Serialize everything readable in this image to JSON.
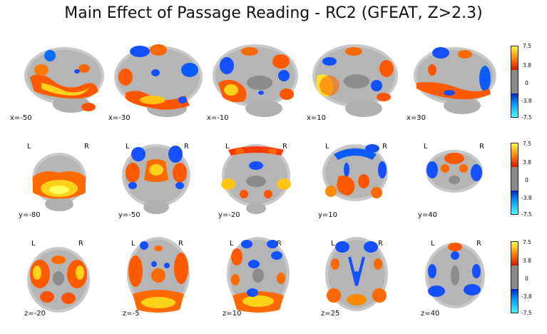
{
  "title": "Main Effect of Passage Reading - RC2 (GFEAT, Z>2.3)",
  "rows": [
    {
      "view": "sagittal",
      "slices": [
        "x=-50",
        "x=-30",
        "x=-10",
        "x=10",
        "x=30"
      ]
    },
    {
      "view": "coronal",
      "slices": [
        "y=-80",
        "y=-50",
        "y=-20",
        "y=10",
        "y=40"
      ],
      "left_label": "L",
      "right_label": "R"
    },
    {
      "view": "axial",
      "slices": [
        "z=-20",
        "z=-5",
        "z=10",
        "z=25",
        "z=40"
      ],
      "left_label": "L",
      "right_label": "R"
    }
  ],
  "colorbar": {
    "ticks": [
      "7.5",
      "3.8",
      "0",
      "-3.8",
      "-7.5"
    ],
    "colors": {
      "pos_high": "#ffff40",
      "pos_mid": "#ff6a00",
      "pos_low": "#d81200",
      "neutral": "#8a8a8a",
      "neg_low": "#0020c8",
      "neg_mid": "#0090ff",
      "neg_high": "#40ffff"
    }
  }
}
